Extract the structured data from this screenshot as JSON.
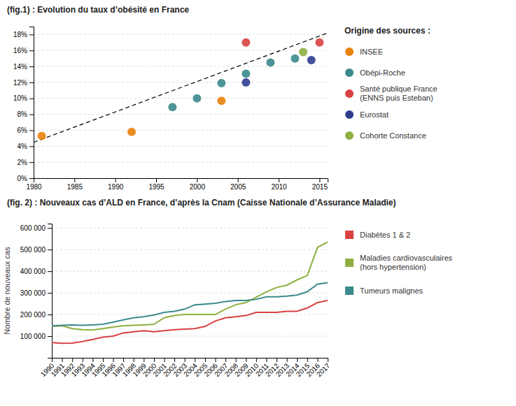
{
  "chart_data": [
    {
      "type": "scatter",
      "title": "(fig.1) : Evolution du taux d’obésité en France",
      "legend_title": "Origine des sources :",
      "xlim": [
        1980,
        2016
      ],
      "xticks": [
        1980,
        1985,
        1990,
        1995,
        2000,
        2005,
        2010,
        2015
      ],
      "ylim": [
        0,
        19
      ],
      "yticks": [
        {
          "value": 0,
          "label": "0%"
        },
        {
          "value": 2,
          "label": "2%"
        },
        {
          "value": 4,
          "label": "4%"
        },
        {
          "value": 6,
          "label": "6%"
        },
        {
          "value": 8,
          "label": "8%"
        },
        {
          "value": 10,
          "label": "10%"
        },
        {
          "value": 12,
          "label": "12%"
        },
        {
          "value": 14,
          "label": "14%"
        },
        {
          "value": 16,
          "label": "16%"
        },
        {
          "value": 18,
          "label": "18%"
        }
      ],
      "grid": "y",
      "series": [
        {
          "name": "INSEE",
          "color": "#E8820C",
          "x": [
            1981,
            1992,
            2003
          ],
          "values": [
            5.3,
            5.8,
            9.7
          ]
        },
        {
          "name": "Obépi-Roche",
          "color": "#3B8A8C",
          "x": [
            1997,
            2000,
            2003,
            2006,
            2009,
            2012
          ],
          "values": [
            8.9,
            10.0,
            11.9,
            13.1,
            14.5,
            15.0
          ]
        },
        {
          "name": "Santé publique France\n(ENNS puis Esteban)",
          "color": "#D94040",
          "x": [
            2006,
            2015
          ],
          "values": [
            17.0,
            17.0
          ]
        },
        {
          "name": "Eurostat",
          "color": "#2D3D8E",
          "x": [
            2006,
            2014
          ],
          "values": [
            12.0,
            14.8
          ]
        },
        {
          "name": "Cohorte Constance",
          "color": "#8DB040",
          "x": [
            2013
          ],
          "values": [
            15.8
          ]
        },
        {
          "type": "line",
          "line_style": "dashed",
          "color": "#000000",
          "x": [
            1980,
            2016
          ],
          "values": [
            4.5,
            18.2
          ]
        }
      ]
    },
    {
      "type": "line",
      "title": "(fig. 2) : Nouveaux cas d’ALD en France, d’après la Cnam (Caisse Nationale d’Assurance Maladie)",
      "ylabel": "Nombre de nouveaux cas",
      "x": [
        1990,
        1991,
        1992,
        1993,
        1994,
        1995,
        1996,
        1997,
        1998,
        1999,
        2000,
        2001,
        2002,
        2003,
        2004,
        2005,
        2006,
        2007,
        2008,
        2009,
        2010,
        2011,
        2012,
        2013,
        2014,
        2015,
        2016,
        2017
      ],
      "xlim": [
        1990,
        2017
      ],
      "xticks": [
        1990,
        1991,
        1992,
        1993,
        1994,
        1995,
        1996,
        1997,
        1998,
        1999,
        2000,
        2001,
        2002,
        2003,
        2004,
        2005,
        2006,
        2007,
        2008,
        2009,
        2010,
        2011,
        2012,
        2013,
        2014,
        2015,
        2016,
        2017
      ],
      "ylim": [
        0,
        620000
      ],
      "yticks": [
        {
          "value": 100000,
          "label": "100 000"
        },
        {
          "value": 200000,
          "label": "200 000"
        },
        {
          "value": 300000,
          "label": "300 000"
        },
        {
          "value": 400000,
          "label": "400 000"
        },
        {
          "value": 500000,
          "label": "500 000"
        },
        {
          "value": 600000,
          "label": "600 000"
        }
      ],
      "grid": "y",
      "series": [
        {
          "name": "Diabètes 1 & 2",
          "color": "#D94040",
          "values": [
            70000,
            67000,
            68000,
            75000,
            85000,
            95000,
            100000,
            115000,
            120000,
            125000,
            120000,
            125000,
            130000,
            132000,
            135000,
            145000,
            170000,
            185000,
            190000,
            195000,
            210000,
            210000,
            210000,
            215000,
            215000,
            230000,
            255000,
            265000
          ]
        },
        {
          "name": "Maladies cardiovasculaires\n(hors hypertension)",
          "color": "#8DB040",
          "values": [
            145000,
            148000,
            135000,
            130000,
            128000,
            135000,
            142000,
            148000,
            150000,
            152000,
            155000,
            185000,
            195000,
            200000,
            200000,
            200000,
            200000,
            225000,
            245000,
            255000,
            280000,
            305000,
            325000,
            335000,
            360000,
            380000,
            510000,
            535000
          ]
        },
        {
          "name": "Tumeurs malignes",
          "color": "#3B8A8C",
          "values": [
            148000,
            150000,
            152000,
            150000,
            152000,
            155000,
            165000,
            175000,
            185000,
            190000,
            198000,
            210000,
            215000,
            225000,
            245000,
            248000,
            252000,
            260000,
            265000,
            265000,
            270000,
            282000,
            282000,
            285000,
            290000,
            305000,
            340000,
            347000
          ]
        }
      ]
    }
  ]
}
